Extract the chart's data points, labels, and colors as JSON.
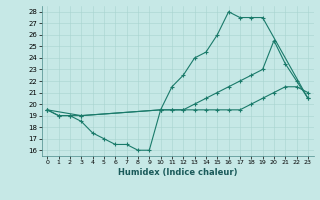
{
  "xlabel": "Humidex (Indice chaleur)",
  "bg_color": "#c6e8e6",
  "line_color": "#1a7a6a",
  "xlim": [
    -0.5,
    23.5
  ],
  "ylim": [
    15.5,
    28.5
  ],
  "xticks": [
    0,
    1,
    2,
    3,
    4,
    5,
    6,
    7,
    8,
    9,
    10,
    11,
    12,
    13,
    14,
    15,
    16,
    17,
    18,
    19,
    20,
    21,
    22,
    23
  ],
  "yticks": [
    16,
    17,
    18,
    19,
    20,
    21,
    22,
    23,
    24,
    25,
    26,
    27,
    28
  ],
  "line1_x": [
    0,
    1,
    2,
    3,
    10,
    11,
    12,
    13,
    14,
    15,
    16,
    17,
    18,
    19,
    23
  ],
  "line1_y": [
    19.5,
    19.0,
    19.0,
    19.0,
    19.5,
    21.5,
    22.5,
    24.0,
    24.5,
    26.0,
    28.0,
    27.5,
    27.5,
    27.5,
    20.5
  ],
  "line2_x": [
    0,
    3,
    10,
    11,
    12,
    13,
    14,
    15,
    16,
    17,
    18,
    19,
    20,
    21,
    22,
    23
  ],
  "line2_y": [
    19.5,
    19.0,
    19.5,
    19.5,
    19.5,
    20.0,
    20.5,
    21.0,
    21.5,
    22.0,
    22.5,
    23.0,
    25.5,
    23.5,
    22.0,
    20.5
  ],
  "line3_x": [
    0,
    1,
    2,
    3,
    4,
    5,
    6,
    7,
    8,
    9,
    10,
    11,
    12,
    13,
    14,
    15,
    16,
    17,
    18,
    19,
    20,
    21,
    22,
    23
  ],
  "line3_y": [
    19.5,
    19.0,
    19.0,
    18.5,
    17.5,
    17.0,
    16.5,
    16.5,
    16.0,
    16.0,
    19.5,
    19.5,
    19.5,
    19.5,
    19.5,
    19.5,
    19.5,
    19.5,
    20.0,
    20.5,
    21.0,
    21.5,
    21.5,
    21.0
  ]
}
